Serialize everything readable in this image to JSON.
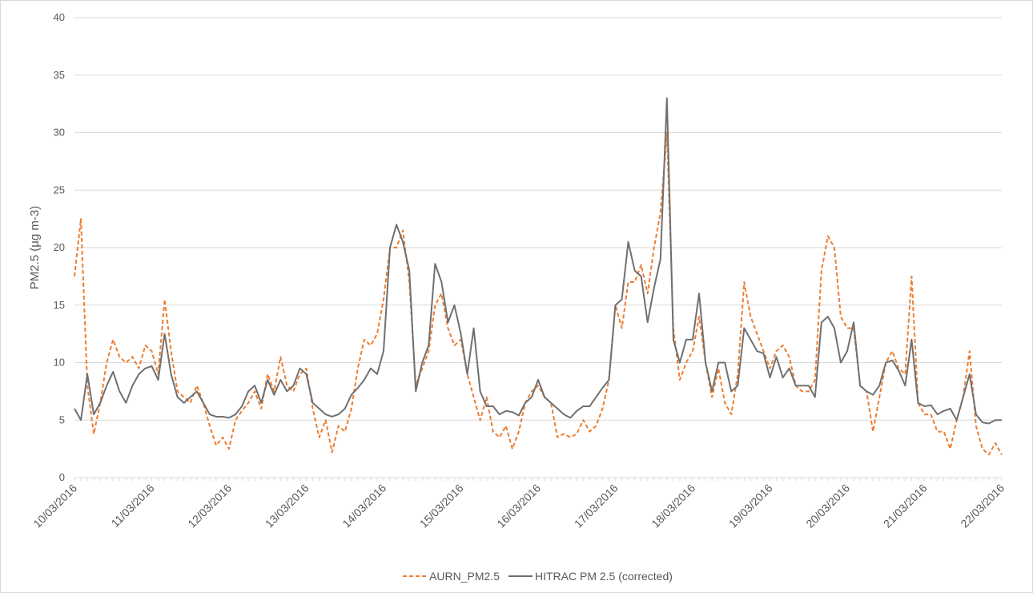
{
  "chart_data": {
    "type": "line",
    "y_label": "PM2.5 (µg m-3)",
    "categories": [
      "10/03/2016",
      null,
      null,
      null,
      null,
      null,
      null,
      null,
      null,
      null,
      null,
      null,
      "11/03/2016",
      null,
      null,
      null,
      null,
      null,
      null,
      null,
      null,
      null,
      null,
      null,
      "12/03/2016",
      null,
      null,
      null,
      null,
      null,
      null,
      null,
      null,
      null,
      null,
      null,
      "13/03/2016",
      null,
      null,
      null,
      null,
      null,
      null,
      null,
      null,
      null,
      null,
      null,
      "14/03/2016",
      null,
      null,
      null,
      null,
      null,
      null,
      null,
      null,
      null,
      null,
      null,
      "15/03/2016",
      null,
      null,
      null,
      null,
      null,
      null,
      null,
      null,
      null,
      null,
      null,
      "16/03/2016",
      null,
      null,
      null,
      null,
      null,
      null,
      null,
      null,
      null,
      null,
      null,
      "17/03/2016",
      null,
      null,
      null,
      null,
      null,
      null,
      null,
      null,
      null,
      null,
      null,
      "18/03/2016",
      null,
      null,
      null,
      null,
      null,
      null,
      null,
      null,
      null,
      null,
      null,
      "19/03/2016",
      null,
      null,
      null,
      null,
      null,
      null,
      null,
      null,
      null,
      null,
      null,
      "20/03/2016",
      null,
      null,
      null,
      null,
      null,
      null,
      null,
      null,
      null,
      null,
      null,
      "21/03/2016",
      null,
      null,
      null,
      null,
      null,
      null,
      null,
      null,
      null,
      null,
      null,
      "22/03/2016"
    ],
    "series": [
      {
        "name": "AURN_PM2.5",
        "color": "#ED7D31",
        "line_style": "dashed",
        "values": [
          17.5,
          22.5,
          8,
          3.8,
          6.5,
          10,
          12,
          10.5,
          10,
          10.5,
          9.5,
          11.5,
          11,
          9,
          15.5,
          11,
          7.5,
          7,
          6.5,
          8,
          6.5,
          4.5,
          2.8,
          3.5,
          2.5,
          5,
          5.8,
          6.5,
          7.5,
          6,
          9,
          7.5,
          10.5,
          8,
          7.5,
          9,
          9.5,
          6,
          3.5,
          5,
          2.2,
          4.5,
          4,
          6,
          9.5,
          12,
          11.5,
          12.5,
          15.5,
          20,
          20,
          21.5,
          17,
          8,
          9.5,
          11,
          15,
          16,
          13,
          11.5,
          12,
          9,
          7,
          5,
          7,
          4,
          3.5,
          4.5,
          2.5,
          4,
          6.5,
          7.5,
          8,
          7,
          6.5,
          3.5,
          3.8,
          3.5,
          3.8,
          5,
          4,
          4.5,
          6,
          8.5,
          15,
          13,
          17,
          17,
          18.5,
          16,
          20,
          23,
          30,
          13,
          8.5,
          10,
          11,
          14,
          10,
          7,
          9.5,
          6.5,
          5.5,
          9,
          17,
          14,
          12.5,
          11,
          9.5,
          11,
          11.5,
          10.5,
          8,
          7.5,
          7.5,
          8.5,
          18,
          21,
          20,
          14,
          13,
          13,
          8,
          7.5,
          4,
          7,
          10,
          11,
          9.5,
          9,
          17.5,
          6.5,
          5.5,
          5.5,
          4,
          4,
          2.5,
          5,
          7,
          11,
          4.5,
          2.5,
          2,
          3,
          2
        ]
      },
      {
        "name": "HITRAC PM 2.5 (corrected)",
        "color": "#707070",
        "line_style": "solid",
        "values": [
          6,
          5,
          9,
          5.5,
          6.5,
          8,
          9.2,
          7.5,
          6.5,
          8,
          9,
          9.5,
          9.7,
          8.5,
          12.5,
          9,
          7,
          6.5,
          7,
          7.5,
          6.5,
          5.5,
          5.3,
          5.3,
          5.2,
          5.5,
          6.2,
          7.5,
          8,
          6.5,
          8.5,
          7.2,
          8.5,
          7.5,
          8,
          9.5,
          9,
          6.5,
          6,
          5.5,
          5.3,
          5.5,
          6,
          7.2,
          7.8,
          8.5,
          9.5,
          9,
          11,
          20,
          22,
          20.5,
          18,
          7.5,
          10,
          11.5,
          18.6,
          17,
          13.5,
          15,
          12.5,
          9,
          13,
          7.5,
          6.2,
          6.2,
          5.5,
          5.8,
          5.7,
          5.4,
          6.5,
          7,
          8.5,
          7,
          6.5,
          6,
          5.5,
          5.2,
          5.8,
          6.2,
          6.2,
          7,
          7.8,
          8.5,
          15,
          15.5,
          20.5,
          18,
          17.5,
          13.5,
          16.5,
          19,
          33,
          12,
          10,
          12,
          12,
          16,
          10,
          7.5,
          10,
          10,
          7.5,
          8,
          13,
          12,
          11,
          10.8,
          8.7,
          10.5,
          8.7,
          9.5,
          8,
          8,
          8,
          7,
          13.5,
          14,
          13,
          10,
          11,
          13.5,
          8,
          7.5,
          7.2,
          8,
          10,
          10.2,
          9.3,
          8,
          12,
          6.5,
          6.2,
          6.3,
          5.5,
          5.8,
          6,
          5,
          7,
          9,
          5.5,
          4.8,
          4.7,
          5,
          5
        ]
      }
    ],
    "ylim": [
      0,
      40
    ],
    "yticks": [
      0,
      5,
      10,
      15,
      20,
      25,
      30,
      35,
      40
    ],
    "grid": true,
    "legend": "bottom"
  }
}
